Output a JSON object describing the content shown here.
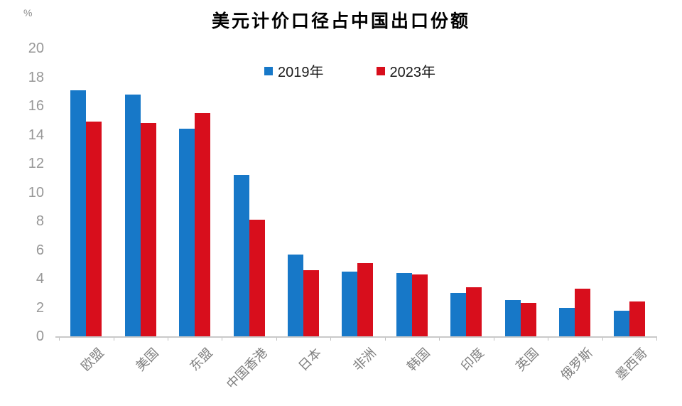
{
  "chart_data": {
    "type": "bar",
    "title": "美元计价口径占中国出口份额",
    "y_unit_label": "%",
    "categories": [
      "欧盟",
      "美国",
      "东盟",
      "中国香港",
      "日本",
      "非洲",
      "韩国",
      "印度",
      "英国",
      "俄罗斯",
      "墨西哥"
    ],
    "series": [
      {
        "name": "2019年",
        "color": "#1778c8",
        "values": [
          17.1,
          16.8,
          14.4,
          11.2,
          5.7,
          4.5,
          4.4,
          3.0,
          2.5,
          2.0,
          1.8
        ]
      },
      {
        "name": "2023年",
        "color": "#d80e1c",
        "values": [
          14.9,
          14.8,
          15.5,
          8.1,
          4.6,
          5.1,
          4.3,
          3.4,
          2.3,
          3.3,
          2.4
        ]
      }
    ],
    "ylim": [
      0,
      20
    ],
    "yticks": [
      0,
      2,
      4,
      6,
      8,
      10,
      12,
      14,
      16,
      18,
      20
    ],
    "grid": false,
    "legend_position": "top-center",
    "axis_color": "#c9c9c9",
    "tick_label_color": "#979797",
    "category_label_color": "#7f7f7f",
    "background": "#ffffff"
  }
}
